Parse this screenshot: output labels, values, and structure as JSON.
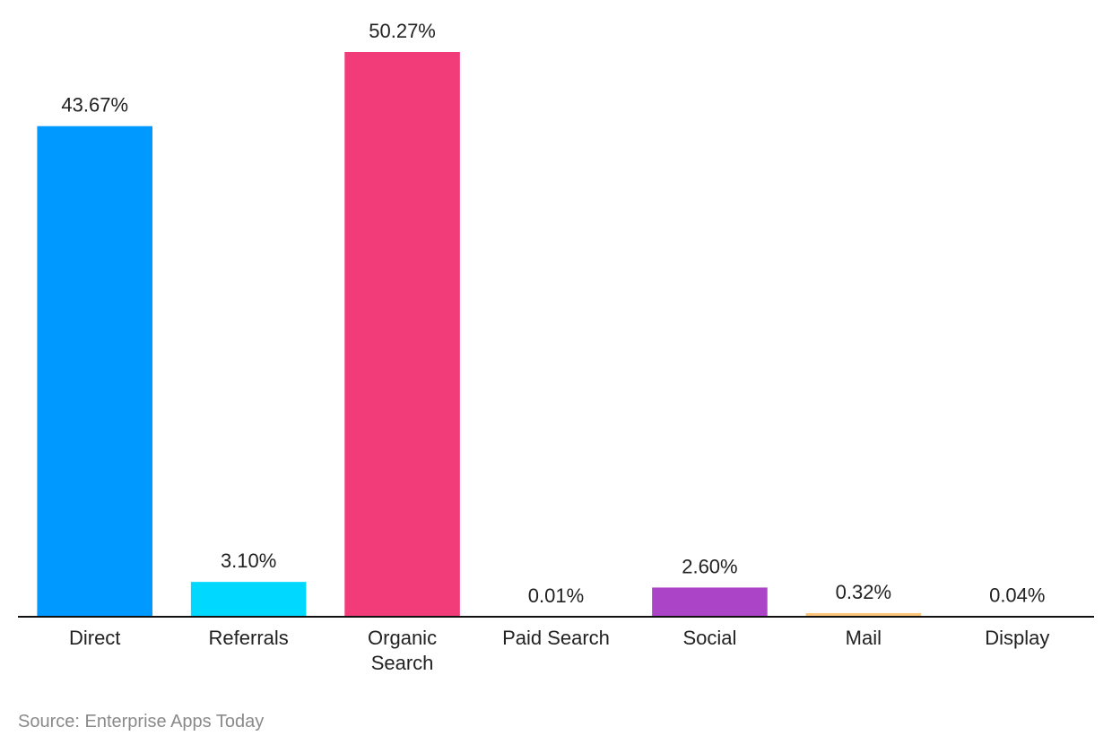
{
  "chart_data": {
    "type": "bar",
    "categories": [
      "Direct",
      "Referrals",
      "Organic Search",
      "Paid Search",
      "Social",
      "Mail",
      "Display"
    ],
    "values": [
      43.67,
      3.1,
      50.27,
      0.01,
      2.6,
      0.32,
      0.04
    ],
    "value_labels": [
      "43.67%",
      "3.10%",
      "50.27%",
      "0.01%",
      "2.60%",
      "0.32%",
      "0.04%"
    ],
    "colors": [
      "#0099ff",
      "#00d8ff",
      "#f23c7a",
      "#6f5cf2",
      "#ac44c8",
      "#ffc679",
      "#ff8a3d"
    ],
    "source": "Source: Enterprise Apps Today"
  }
}
